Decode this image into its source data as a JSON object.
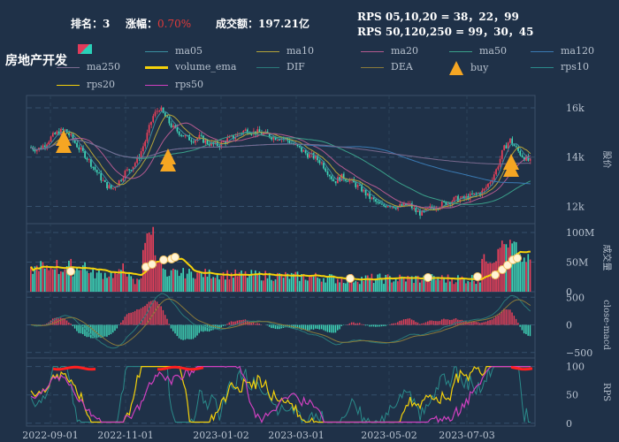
{
  "header": {
    "rank_label": "排名：",
    "rank_value": "3",
    "change_label": "涨幅：",
    "change_value": "0.70%",
    "amount_label": "成交额：",
    "amount_value": "197.21亿",
    "rps_short": "RPS 05,10,20 = 38，22，99",
    "rps_long": "RPS 50,120,250 = 99，30，45"
  },
  "title": "房地产开发",
  "legend": [
    {
      "name": "ma05",
      "color": "#3a8fa0",
      "kind": "line"
    },
    {
      "name": "ma10",
      "color": "#b3a33a",
      "kind": "line"
    },
    {
      "name": "ma20",
      "color": "#b35a8f",
      "kind": "line"
    },
    {
      "name": "ma50",
      "color": "#3aa08a",
      "kind": "line"
    },
    {
      "name": "ma120",
      "color": "#3a7ab3",
      "kind": "line"
    },
    {
      "name": "ma250",
      "color": "#7a6a8f",
      "kind": "line"
    },
    {
      "name": "volume_ema",
      "color": "#f5d20a",
      "kind": "line"
    },
    {
      "name": "DIF",
      "color": "#2a7a7a",
      "kind": "line"
    },
    {
      "name": "DEA",
      "color": "#8a7a3a",
      "kind": "line"
    },
    {
      "name": "buy",
      "color": "#f5a623",
      "kind": "triangle"
    },
    {
      "name": "rps10",
      "color": "#2a8a8a",
      "kind": "line"
    },
    {
      "name": "rps20",
      "color": "#f5d20a",
      "kind": "line"
    },
    {
      "name": "rps50",
      "color": "#d040c0",
      "kind": "line"
    }
  ],
  "chart_data": {
    "type": "candlestick",
    "x_ticks": [
      "2022-09-01",
      "2022-11-01",
      "2023-01-02",
      "2023-03-01",
      "2023-05-02",
      "2023-07-03"
    ],
    "price_axis": {
      "ticks": [
        "16k",
        "14k",
        "12k"
      ],
      "values": [
        16000,
        14000,
        12000
      ],
      "range": [
        11300,
        16500
      ],
      "label": "股价"
    },
    "volume_axis": {
      "ticks": [
        "100M",
        "50M",
        "0"
      ],
      "values": [
        100,
        50,
        0
      ],
      "range": [
        0,
        115
      ],
      "label": "成交量"
    },
    "macd_axis": {
      "ticks": [
        "500",
        "0",
        "−500"
      ],
      "values": [
        500,
        0,
        -500
      ],
      "range": [
        -600,
        600
      ],
      "label": "close-macd"
    },
    "rps_axis": {
      "ticks": [
        "100",
        "50",
        "0"
      ],
      "values": [
        100,
        50,
        0
      ],
      "range": [
        -5,
        115
      ],
      "label": "RPS"
    },
    "price_trend": [
      14400,
      14300,
      14500,
      14800,
      15000,
      15100,
      14800,
      14400,
      14100,
      13700,
      13300,
      12900,
      12700,
      13000,
      13400,
      13600,
      14000,
      14700,
      15600,
      16000,
      15600,
      15200,
      15000,
      14800,
      14700,
      14800,
      14600,
      14500,
      14500,
      14700,
      14800,
      15000,
      15100,
      15000,
      15000,
      14900,
      14800,
      14800,
      14700,
      14500,
      14300,
      14100,
      14000,
      13800,
      13400,
      13000,
      13200,
      13100,
      12900,
      12700,
      12400,
      12200,
      12000,
      12100,
      12000,
      12000,
      12100,
      11800,
      11700,
      11900,
      12000,
      12100,
      12200,
      12300,
      12300,
      12400,
      12500,
      12600,
      13000,
      13500,
      14300,
      14700,
      14300,
      14000,
      13800
    ]
  }
}
